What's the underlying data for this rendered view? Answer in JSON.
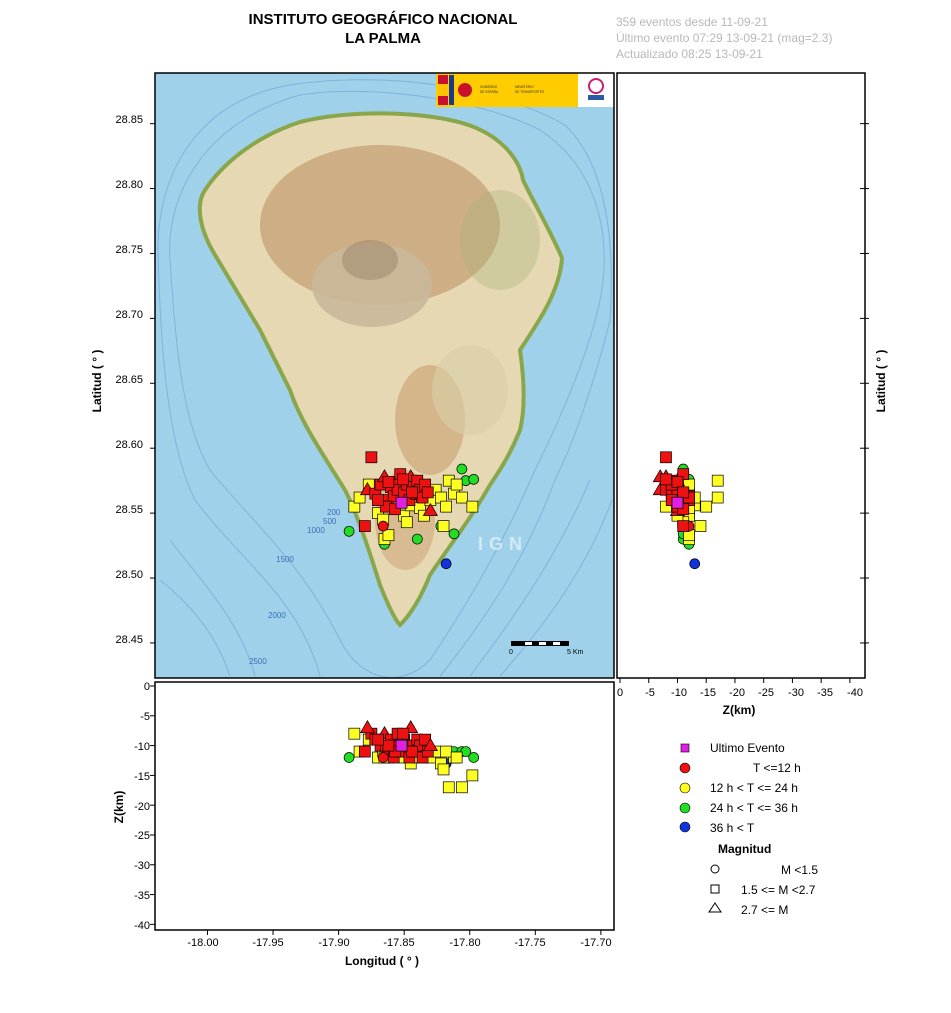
{
  "header": {
    "title_line1": "INSTITUTO GEOGRÁFICO NACIONAL",
    "title_line2": "LA PALMA",
    "info_line1": "359 eventos desde 11-09-21",
    "info_line2": "Último evento 07:29 13-09-21  (mag=2.3)",
    "info_line3": "Actualizado   08:25  13-09-21"
  },
  "map": {
    "logo_text": "GOBIERNO DE ESPAÑA · MINISTERIO DE TRANSPORTES, MOVILIDAD Y AGENDA URBANA",
    "watermark": "IGN",
    "scale_start": "0",
    "scale_end": "5 Km",
    "depth_labels": [
      "200",
      "500",
      "1000",
      "1500",
      "2000",
      "2500"
    ],
    "colors": {
      "sea": "#9fd1ea",
      "land": "#e6d8b2",
      "relief": "#b98c5e",
      "coast": "#8aa64a"
    }
  },
  "axes": {
    "lat_label": "Latitud ( ° )",
    "lon_label": "Longitud ( ° )",
    "z_label_right": "Z(km)",
    "z_label_bottom": "Z(km)",
    "lat_ticks": [
      "28.85",
      "28.80",
      "28.75",
      "28.70",
      "28.65",
      "28.60",
      "28.55",
      "28.50",
      "28.45"
    ],
    "lon_ticks": [
      "-18.00",
      "-17.95",
      "-17.90",
      "-17.85",
      "-17.80",
      "-17.75",
      "-17.70"
    ],
    "z_ticks_bottom": [
      "0",
      "-5",
      "-10",
      "-15",
      "-20",
      "-25",
      "-30",
      "-35",
      "-40"
    ],
    "z_ticks_right": [
      "0",
      "-5",
      "-10",
      "-15",
      "-20",
      "-25",
      "-30",
      "-35",
      "-40"
    ]
  },
  "legend": {
    "last_event": "Ultimo Evento",
    "t1": "T <=12 h",
    "t2": "12 h  < T <= 24 h",
    "t3": "24 h  < T <= 36 h",
    "t4": "36 h <  T",
    "magnitude_title": "Magnitud",
    "m1": "M <1.5",
    "m2": "1.5 <= M <2.7",
    "m3": "2.7 <= M",
    "colors": {
      "last": "#e020e0",
      "red": "#ee1111",
      "yellow": "#ffff22",
      "green": "#22dd22",
      "blue": "#1133dd"
    }
  },
  "chart_data": {
    "type": "scatter",
    "lon_range": [
      -18.04,
      -17.69
    ],
    "lat_range": [
      28.423,
      28.889
    ],
    "depth_range": [
      0,
      -40
    ],
    "events": [
      {
        "lon": -17.852,
        "lat": 28.558,
        "z": -10,
        "age": "last",
        "mag": "square"
      },
      {
        "lon": -17.875,
        "lat": 28.593,
        "z": -8,
        "age": "red",
        "mag": "square"
      },
      {
        "lon": -17.878,
        "lat": 28.568,
        "z": -7,
        "age": "red",
        "mag": "triangle"
      },
      {
        "lon": -17.872,
        "lat": 28.565,
        "z": -9,
        "age": "red",
        "mag": "square"
      },
      {
        "lon": -17.868,
        "lat": 28.572,
        "z": -10,
        "age": "red",
        "mag": "square"
      },
      {
        "lon": -17.865,
        "lat": 28.578,
        "z": -8,
        "age": "red",
        "mag": "triangle"
      },
      {
        "lon": -17.862,
        "lat": 28.56,
        "z": -11,
        "age": "red",
        "mag": "square"
      },
      {
        "lon": -17.86,
        "lat": 28.57,
        "z": -9,
        "age": "red",
        "mag": "square"
      },
      {
        "lon": -17.858,
        "lat": 28.563,
        "z": -12,
        "age": "red",
        "mag": "square"
      },
      {
        "lon": -17.856,
        "lat": 28.575,
        "z": -10,
        "age": "red",
        "mag": "triangle"
      },
      {
        "lon": -17.855,
        "lat": 28.568,
        "z": -8,
        "age": "red",
        "mag": "square"
      },
      {
        "lon": -17.853,
        "lat": 28.58,
        "z": -11,
        "age": "red",
        "mag": "square"
      },
      {
        "lon": -17.85,
        "lat": 28.566,
        "z": -9,
        "age": "red",
        "mag": "square"
      },
      {
        "lon": -17.848,
        "lat": 28.572,
        "z": -10,
        "age": "red",
        "mag": "square"
      },
      {
        "lon": -17.846,
        "lat": 28.56,
        "z": -12,
        "age": "red",
        "mag": "square"
      },
      {
        "lon": -17.845,
        "lat": 28.578,
        "z": -7,
        "age": "red",
        "mag": "triangle"
      },
      {
        "lon": -17.843,
        "lat": 28.57,
        "z": -10,
        "age": "red",
        "mag": "square"
      },
      {
        "lon": -17.841,
        "lat": 28.565,
        "z": -11,
        "age": "red",
        "mag": "square"
      },
      {
        "lon": -17.84,
        "lat": 28.575,
        "z": -9,
        "age": "red",
        "mag": "square"
      },
      {
        "lon": -17.838,
        "lat": 28.568,
        "z": -10,
        "age": "red",
        "mag": "square"
      },
      {
        "lon": -17.836,
        "lat": 28.562,
        "z": -12,
        "age": "red",
        "mag": "square"
      },
      {
        "lon": -17.834,
        "lat": 28.572,
        "z": -9,
        "age": "red",
        "mag": "square"
      },
      {
        "lon": -17.832,
        "lat": 28.566,
        "z": -11,
        "age": "red",
        "mag": "square"
      },
      {
        "lon": -17.83,
        "lat": 28.552,
        "z": -10,
        "age": "red",
        "mag": "triangle"
      },
      {
        "lon": -17.864,
        "lat": 28.555,
        "z": -10,
        "age": "red",
        "mag": "square"
      },
      {
        "lon": -17.866,
        "lat": 28.54,
        "z": -12,
        "age": "red",
        "mag": "circle"
      },
      {
        "lon": -17.857,
        "lat": 28.553,
        "z": -11,
        "age": "red",
        "mag": "square"
      },
      {
        "lon": -17.88,
        "lat": 28.54,
        "z": -11,
        "age": "red",
        "mag": "square"
      },
      {
        "lon": -17.851,
        "lat": 28.576,
        "z": -8,
        "age": "red",
        "mag": "square"
      },
      {
        "lon": -17.862,
        "lat": 28.574,
        "z": -10,
        "age": "red",
        "mag": "square"
      },
      {
        "lon": -17.87,
        "lat": 28.56,
        "z": -9,
        "age": "red",
        "mag": "square"
      },
      {
        "lon": -17.844,
        "lat": 28.566,
        "z": -11,
        "age": "red",
        "mag": "square"
      },
      {
        "lon": -17.888,
        "lat": 28.555,
        "z": -8,
        "age": "yellow",
        "mag": "square"
      },
      {
        "lon": -17.884,
        "lat": 28.562,
        "z": -11,
        "age": "yellow",
        "mag": "square"
      },
      {
        "lon": -17.87,
        "lat": 28.55,
        "z": -12,
        "age": "yellow",
        "mag": "square"
      },
      {
        "lon": -17.866,
        "lat": 28.545,
        "z": -11,
        "age": "yellow",
        "mag": "square"
      },
      {
        "lon": -17.865,
        "lat": 28.53,
        "z": -12,
        "age": "yellow",
        "mag": "square"
      },
      {
        "lon": -17.85,
        "lat": 28.548,
        "z": -12,
        "age": "yellow",
        "mag": "square"
      },
      {
        "lon": -17.845,
        "lat": 28.556,
        "z": -13,
        "age": "yellow",
        "mag": "square"
      },
      {
        "lon": -17.838,
        "lat": 28.554,
        "z": -12,
        "age": "yellow",
        "mag": "square"
      },
      {
        "lon": -17.83,
        "lat": 28.56,
        "z": -12,
        "age": "yellow",
        "mag": "square"
      },
      {
        "lon": -17.826,
        "lat": 28.568,
        "z": -11,
        "age": "yellow",
        "mag": "square"
      },
      {
        "lon": -17.822,
        "lat": 28.562,
        "z": -13,
        "age": "yellow",
        "mag": "square"
      },
      {
        "lon": -17.82,
        "lat": 28.54,
        "z": -14,
        "age": "yellow",
        "mag": "square"
      },
      {
        "lon": -17.816,
        "lat": 28.575,
        "z": -17,
        "age": "yellow",
        "mag": "square"
      },
      {
        "lon": -17.812,
        "lat": 28.565,
        "z": -12,
        "age": "yellow",
        "mag": "square"
      },
      {
        "lon": -17.806,
        "lat": 28.562,
        "z": -17,
        "age": "yellow",
        "mag": "square"
      },
      {
        "lon": -17.798,
        "lat": 28.555,
        "z": -15,
        "age": "yellow",
        "mag": "square"
      },
      {
        "lon": -17.862,
        "lat": 28.533,
        "z": -12,
        "age": "yellow",
        "mag": "square"
      },
      {
        "lon": -17.848,
        "lat": 28.543,
        "z": -11,
        "age": "yellow",
        "mag": "square"
      },
      {
        "lon": -17.835,
        "lat": 28.548,
        "z": -10,
        "age": "yellow",
        "mag": "square"
      },
      {
        "lon": -17.818,
        "lat": 28.555,
        "z": -11,
        "age": "yellow",
        "mag": "square"
      },
      {
        "lon": -17.81,
        "lat": 28.572,
        "z": -12,
        "age": "yellow",
        "mag": "square"
      },
      {
        "lon": -17.877,
        "lat": 28.572,
        "z": -9,
        "age": "yellow",
        "mag": "square"
      },
      {
        "lon": -17.892,
        "lat": 28.536,
        "z": -12,
        "age": "green",
        "mag": "circle"
      },
      {
        "lon": -17.865,
        "lat": 28.526,
        "z": -12,
        "age": "green",
        "mag": "circle"
      },
      {
        "lon": -17.84,
        "lat": 28.53,
        "z": -11,
        "age": "green",
        "mag": "circle"
      },
      {
        "lon": -17.822,
        "lat": 28.54,
        "z": -11,
        "age": "green",
        "mag": "circle"
      },
      {
        "lon": -17.812,
        "lat": 28.534,
        "z": -11,
        "age": "green",
        "mag": "circle"
      },
      {
        "lon": -17.806,
        "lat": 28.584,
        "z": -11,
        "age": "green",
        "mag": "circle"
      },
      {
        "lon": -17.803,
        "lat": 28.575,
        "z": -11,
        "age": "green",
        "mag": "circle"
      },
      {
        "lon": -17.797,
        "lat": 28.576,
        "z": -12,
        "age": "green",
        "mag": "circle"
      },
      {
        "lon": -17.818,
        "lat": 28.511,
        "z": -13,
        "age": "blue",
        "mag": "circle"
      }
    ]
  }
}
